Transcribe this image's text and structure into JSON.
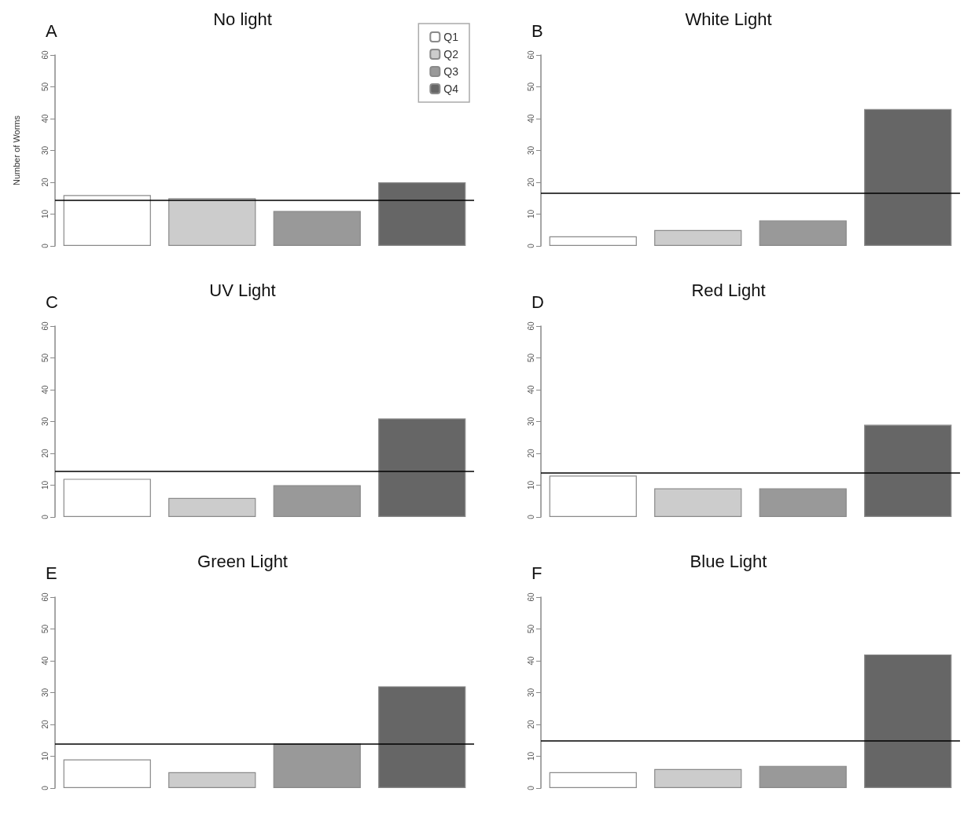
{
  "chart_data": [
    {
      "type": "bar",
      "title": "No light",
      "ylabel": "Number of Worms",
      "annotations": [
        "A"
      ],
      "categories": [
        null
      ],
      "series": [
        {
          "name": "Q1",
          "color": "#ffffff",
          "values": [
            16
          ]
        },
        {
          "name": "Q2",
          "color": "#cccccc",
          "values": [
            15
          ]
        },
        {
          "name": "Q3",
          "color": "#999999",
          "values": [
            11
          ]
        },
        {
          "name": "Q4",
          "color": "#666666",
          "values": [
            20
          ]
        }
      ],
      "ylim": [
        0,
        60
      ],
      "yticks": [
        0,
        10,
        20,
        30,
        40,
        50,
        60
      ],
      "ref_lines": [
        {
          "axis": "y",
          "value": 14.5,
          "color": "#000000"
        }
      ],
      "legend": "top right",
      "tick_labels": "y",
      "grid": false
    },
    {
      "type": "bar",
      "title": "White Light",
      "annotations": [
        "B"
      ],
      "categories": [
        null
      ],
      "series": [
        {
          "color": "#ffffff",
          "values": [
            3
          ]
        },
        {
          "color": "#cccccc",
          "values": [
            5
          ]
        },
        {
          "color": "#999999",
          "values": [
            8
          ]
        },
        {
          "color": "#666666",
          "values": [
            43
          ]
        }
      ],
      "ylim": [
        0,
        60
      ],
      "yticks": [
        0,
        10,
        20,
        30,
        40,
        50,
        60
      ],
      "ref_lines": [
        {
          "axis": "y",
          "value": 16.5,
          "color": "#000000"
        }
      ],
      "legend": false,
      "tick_labels": "y",
      "grid": false
    },
    {
      "type": "bar",
      "title": "UV Light",
      "annotations": [
        "C"
      ],
      "categories": [
        null
      ],
      "series": [
        {
          "color": "#ffffff",
          "values": [
            12
          ]
        },
        {
          "color": "#cccccc",
          "values": [
            6
          ]
        },
        {
          "color": "#999999",
          "values": [
            10
          ]
        },
        {
          "color": "#666666",
          "values": [
            31
          ]
        }
      ],
      "ylim": [
        0,
        60
      ],
      "yticks": [
        0,
        10,
        20,
        30,
        40,
        50,
        60
      ],
      "ref_lines": [
        {
          "axis": "y",
          "value": 14.5,
          "color": "#000000"
        }
      ],
      "legend": false,
      "tick_labels": "y",
      "grid": false
    },
    {
      "type": "bar",
      "title": "Red Light",
      "annotations": [
        "D"
      ],
      "categories": [
        null
      ],
      "series": [
        {
          "color": "#ffffff",
          "values": [
            13
          ]
        },
        {
          "color": "#cccccc",
          "values": [
            9
          ]
        },
        {
          "color": "#999999",
          "values": [
            9
          ]
        },
        {
          "color": "#666666",
          "values": [
            29
          ]
        }
      ],
      "ylim": [
        0,
        60
      ],
      "yticks": [
        0,
        10,
        20,
        30,
        40,
        50,
        60
      ],
      "ref_lines": [
        {
          "axis": "y",
          "value": 14,
          "color": "#000000"
        }
      ],
      "legend": false,
      "tick_labels": "y",
      "grid": false
    },
    {
      "type": "bar",
      "title": "Green Light",
      "annotations": [
        "E"
      ],
      "categories": [
        null
      ],
      "series": [
        {
          "color": "#ffffff",
          "values": [
            9
          ]
        },
        {
          "color": "#cccccc",
          "values": [
            5
          ]
        },
        {
          "color": "#999999",
          "values": [
            14
          ]
        },
        {
          "color": "#666666",
          "values": [
            32
          ]
        }
      ],
      "ylim": [
        0,
        60
      ],
      "yticks": [
        0,
        10,
        20,
        30,
        40,
        50,
        60
      ],
      "ref_lines": [
        {
          "axis": "y",
          "value": 14,
          "color": "#000000"
        }
      ],
      "legend": false,
      "tick_labels": "y",
      "grid": false
    },
    {
      "type": "bar",
      "title": "Blue Light",
      "annotations": [
        "F"
      ],
      "categories": [
        null
      ],
      "series": [
        {
          "color": "#ffffff",
          "values": [
            5
          ]
        },
        {
          "color": "#cccccc",
          "values": [
            6
          ]
        },
        {
          "color": "#999999",
          "values": [
            7
          ]
        },
        {
          "color": "#666666",
          "values": [
            42
          ]
        }
      ],
      "ylim": [
        0,
        60
      ],
      "yticks": [
        0,
        10,
        20,
        30,
        40,
        50,
        60
      ],
      "ref_lines": [
        {
          "axis": "y",
          "value": 15,
          "color": "#000000"
        }
      ],
      "legend": false,
      "tick_labels": "y",
      "grid": false
    }
  ]
}
